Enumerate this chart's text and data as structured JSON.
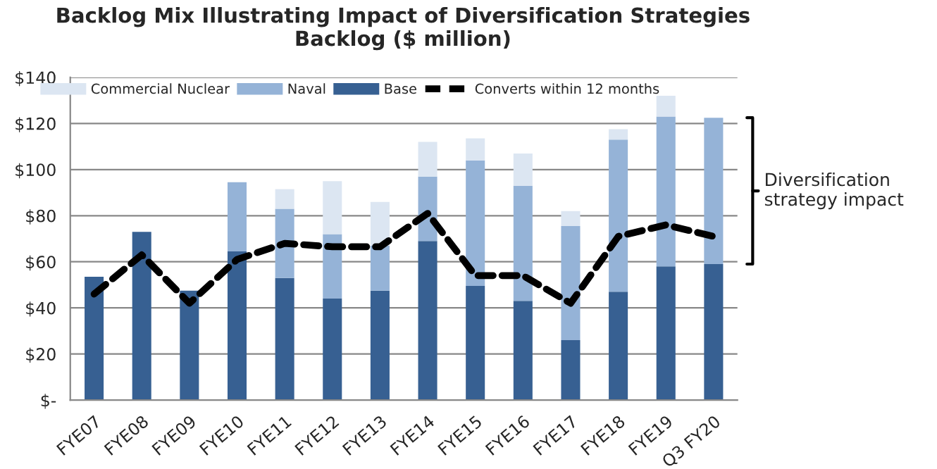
{
  "chart_data": {
    "type": "bar",
    "title": "Backlog Mix Illustrating Impact of Diversification Strategies",
    "subtitle": "Backlog ($ million)",
    "categories": [
      "FYE07",
      "FYE08",
      "FYE09",
      "FYE10",
      "FYE11",
      "FYE12",
      "FYE13",
      "FYE14",
      "FYE15",
      "FYE16",
      "FYE17",
      "FYE18",
      "FYE19",
      "Q3 FY20"
    ],
    "stacked": true,
    "series": [
      {
        "name": "Base",
        "color": "#376092",
        "values": [
          53.5,
          73,
          47.5,
          64.5,
          53,
          44,
          47.5,
          69,
          49.5,
          43,
          26,
          47,
          58,
          59
        ]
      },
      {
        "name": "Naval",
        "color": "#95b3d7",
        "values": [
          null,
          null,
          null,
          30,
          30,
          28,
          19.5,
          28,
          54.5,
          50,
          49.5,
          66,
          65,
          63.5
        ]
      },
      {
        "name": "Commercial Nuclear",
        "color": "#dce6f2",
        "values": [
          null,
          null,
          null,
          null,
          8.5,
          23,
          19,
          15,
          9.5,
          14,
          6.5,
          4.5,
          9,
          null
        ]
      },
      {
        "name": "Converts within 12 months",
        "type": "line",
        "color": "#000000",
        "line_style": "dashed",
        "values": [
          46,
          63,
          42,
          61,
          68,
          66.5,
          66.5,
          81,
          54,
          54,
          42,
          71,
          76,
          71
        ]
      }
    ],
    "ylim": [
      0,
      140
    ],
    "yticks": [
      {
        "value": 0,
        "label": "$-"
      },
      {
        "value": 20,
        "label": "$20"
      },
      {
        "value": 40,
        "label": "$40"
      },
      {
        "value": 60,
        "label": "$60"
      },
      {
        "value": 80,
        "label": "$80"
      },
      {
        "value": 100,
        "label": "$100"
      },
      {
        "value": 120,
        "label": "$120"
      },
      {
        "value": 140,
        "label": "$140"
      }
    ],
    "annotations": [
      "Diversification\nstrategy impact"
    ],
    "grid": "y",
    "legend": "top",
    "marker": "none"
  }
}
